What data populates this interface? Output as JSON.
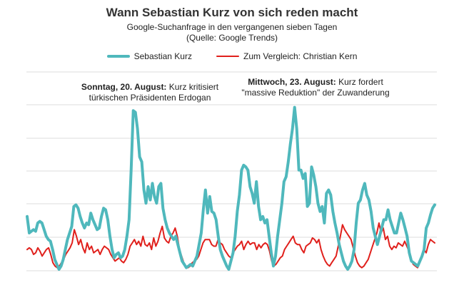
{
  "title": "Wann Sebastian Kurz von sich reden macht",
  "subtitle_line1": "Google-Suchanfrage in den vergangenen sieben Tagen",
  "subtitle_line2": "(Quelle: Google Trends)",
  "legend": [
    {
      "label": "Sebastian Kurz",
      "color": "#4fb8bc"
    },
    {
      "label": "Zum Vergleich: Christian Kern",
      "color": "#e0201c"
    }
  ],
  "annotations": [
    {
      "bold": "Sonntag, 20. August:",
      "rest": "Kurz kritisiert",
      "line2": "türkischen Präsidenten Erdogan"
    },
    {
      "bold": "Mittwoch, 23. August:",
      "rest": "Kurz fordert",
      "line2": "\"massive Reduktion\" der Zuwanderung"
    }
  ],
  "chart_data": {
    "type": "line",
    "title": "Wann Sebastian Kurz von sich reden macht",
    "xlabel": "",
    "ylabel": "",
    "ylim": [
      0,
      100
    ],
    "grid": true,
    "legend_position": "top-center",
    "series": [
      {
        "name": "Sebastian Kurz",
        "color": "#4fb8bc",
        "values": [
          32,
          22,
          23,
          24,
          23,
          28,
          29,
          28,
          24,
          20,
          18,
          17,
          12,
          6,
          3,
          0,
          2,
          6,
          12,
          18,
          22,
          26,
          38,
          39,
          37,
          32,
          28,
          25,
          28,
          27,
          34,
          30,
          27,
          24,
          25,
          32,
          37,
          36,
          30,
          20,
          12,
          7,
          9,
          10,
          7,
          8,
          12,
          20,
          30,
          60,
          96,
          95,
          85,
          68,
          65,
          48,
          40,
          50,
          42,
          52,
          44,
          40,
          50,
          52,
          37,
          30,
          25,
          22,
          20,
          18,
          20,
          15,
          10,
          5,
          3,
          1,
          2,
          3,
          2,
          5,
          8,
          15,
          22,
          36,
          48,
          34,
          44,
          35,
          34,
          30,
          20,
          12,
          8,
          5,
          2,
          0,
          5,
          10,
          20,
          35,
          45,
          60,
          63,
          62,
          60,
          50,
          46,
          40,
          53,
          38,
          30,
          32,
          28,
          30,
          20,
          10,
          2,
          8,
          20,
          30,
          40,
          53,
          56,
          65,
          76,
          85,
          98,
          85,
          60,
          60,
          55,
          58,
          38,
          40,
          62,
          57,
          50,
          40,
          35,
          38,
          28,
          46,
          48,
          45,
          35,
          28,
          22,
          15,
          10,
          5,
          2,
          0,
          2,
          5,
          12,
          28,
          40,
          42,
          48,
          52,
          45,
          42,
          35,
          25,
          20,
          15,
          20,
          25,
          30,
          30,
          36,
          30,
          26,
          22,
          22,
          28,
          34,
          30,
          25,
          20,
          10,
          5,
          4,
          3,
          2,
          5,
          8,
          12,
          25,
          28,
          33,
          37,
          39
        ]
      },
      {
        "name": "Zum Vergleich: Christian Kern",
        "color": "#e0201c",
        "values": [
          12,
          13,
          12,
          9,
          10,
          13,
          11,
          8,
          10,
          12,
          13,
          9,
          4,
          2,
          1,
          2,
          4,
          6,
          9,
          11,
          13,
          16,
          24,
          20,
          15,
          18,
          13,
          10,
          16,
          12,
          14,
          10,
          11,
          12,
          9,
          12,
          14,
          13,
          12,
          9,
          7,
          5,
          6,
          7,
          5,
          4,
          6,
          9,
          14,
          16,
          18,
          15,
          17,
          14,
          20,
          15,
          14,
          16,
          12,
          19,
          14,
          17,
          22,
          26,
          19,
          17,
          16,
          20,
          22,
          25,
          20,
          12,
          8,
          4,
          2,
          1,
          2,
          4,
          5,
          6,
          8,
          12,
          16,
          18,
          18,
          18,
          15,
          14,
          14,
          18,
          16,
          15,
          12,
          10,
          8,
          7,
          10,
          12,
          14,
          15,
          17,
          12,
          15,
          17,
          15,
          16,
          16,
          12,
          15,
          13,
          15,
          16,
          15,
          11,
          5,
          2,
          3,
          5,
          7,
          8,
          12,
          14,
          16,
          18,
          20,
          16,
          15,
          15,
          12,
          10,
          14,
          15,
          16,
          19,
          18,
          16,
          18,
          12,
          8,
          5,
          3,
          2,
          4,
          6,
          8,
          14,
          20,
          27,
          24,
          22,
          20,
          18,
          13,
          8,
          4,
          2,
          1,
          2,
          4,
          6,
          10,
          14,
          18,
          22,
          28,
          22,
          25,
          18,
          20,
          14,
          12,
          14,
          13,
          16,
          15,
          14,
          17,
          14,
          11,
          6,
          3,
          2,
          1,
          4,
          8,
          12,
          10,
          15,
          18,
          17,
          16
        ]
      }
    ]
  }
}
